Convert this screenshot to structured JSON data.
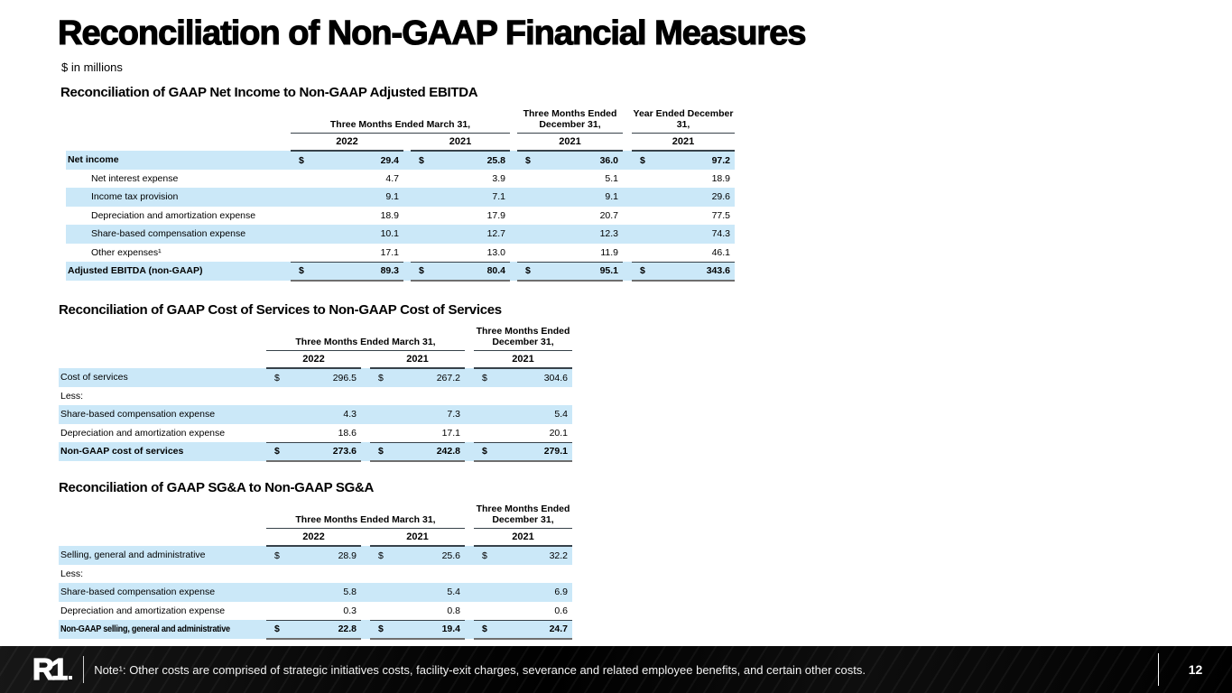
{
  "page": {
    "title": "Reconciliation of Non-GAAP Financial Measures",
    "subtitle": "$ in millions",
    "logo_text": "R1",
    "footer_note": "Note¹: Other costs are comprised of strategic initiatives costs, facility-exit charges, severance and related employee benefits, and certain other costs.",
    "page_number": "12"
  },
  "colors": {
    "row_highlight": "#cbe8f8",
    "rule_dark": "#37424a",
    "rule_total_bottom": "#6e6e6e",
    "footer_bg": "#0b0b0b"
  },
  "tables": [
    {
      "section_title": "Reconciliation of GAAP Net Income to Non-GAAP Adjusted EBITDA",
      "column_groups": [
        {
          "label": "Three Months Ended March 31,",
          "span": 2
        },
        {
          "label": "Three Months Ended December 31,",
          "span": 1
        },
        {
          "label": "Year Ended December 31,",
          "span": 1
        }
      ],
      "year_headers": [
        "2022",
        "2021",
        "2021",
        "2021"
      ],
      "rows": [
        {
          "label": "Net income",
          "bold": true,
          "highlight": true,
          "dollar": true,
          "values": [
            "29.4",
            "25.8",
            "36.0",
            "97.2"
          ]
        },
        {
          "label": "Net interest expense",
          "indent": true,
          "values": [
            "4.7",
            "3.9",
            "5.1",
            "18.9"
          ]
        },
        {
          "label": "Income tax provision",
          "indent": true,
          "highlight": true,
          "values": [
            "9.1",
            "7.1",
            "9.1",
            "29.6"
          ]
        },
        {
          "label": "Depreciation and amortization expense",
          "indent": true,
          "values": [
            "18.9",
            "17.9",
            "20.7",
            "77.5"
          ]
        },
        {
          "label": "Share-based compensation expense",
          "indent": true,
          "highlight": true,
          "values": [
            "10.1",
            "12.7",
            "12.3",
            "74.3"
          ]
        },
        {
          "label": "Other expenses¹",
          "indent": true,
          "underline": true,
          "values": [
            "17.1",
            "13.0",
            "11.9",
            "46.1"
          ]
        },
        {
          "label": "Adjusted EBITDA (non-GAAP)",
          "bold": true,
          "highlight": true,
          "dollar": true,
          "total": true,
          "values": [
            "89.3",
            "80.4",
            "95.1",
            "343.6"
          ]
        }
      ]
    },
    {
      "section_title": "Reconciliation of GAAP Cost of Services to Non-GAAP Cost of Services",
      "column_groups": [
        {
          "label": "Three Months Ended March 31,",
          "span": 2
        },
        {
          "label": "Three Months Ended December 31,",
          "span": 1
        }
      ],
      "year_headers": [
        "2022",
        "2021",
        "2021"
      ],
      "rows": [
        {
          "label": "Cost of services",
          "highlight": true,
          "dollar": true,
          "values": [
            "296.5",
            "267.2",
            "304.6"
          ]
        },
        {
          "label": "Less:",
          "values": [
            "",
            "",
            ""
          ]
        },
        {
          "label": "Share-based compensation expense",
          "highlight": true,
          "values": [
            "4.3",
            "7.3",
            "5.4"
          ]
        },
        {
          "label": "Depreciation and amortization expense",
          "underline": true,
          "values": [
            "18.6",
            "17.1",
            "20.1"
          ]
        },
        {
          "label": "Non-GAAP cost of services",
          "bold": true,
          "highlight": true,
          "dollar": true,
          "total": true,
          "values": [
            "273.6",
            "242.8",
            "279.1"
          ]
        }
      ]
    },
    {
      "section_title": "Reconciliation of GAAP SG&A to Non-GAAP SG&A",
      "column_groups": [
        {
          "label": "Three Months Ended March 31,",
          "span": 2
        },
        {
          "label": "Three Months Ended December 31,",
          "span": 1
        }
      ],
      "year_headers": [
        "2022",
        "2021",
        "2021"
      ],
      "rows": [
        {
          "label": "Selling, general and administrative",
          "highlight": true,
          "dollar": true,
          "values": [
            "28.9",
            "25.6",
            "32.2"
          ]
        },
        {
          "label": "Less:",
          "values": [
            "",
            "",
            ""
          ]
        },
        {
          "label": "Share-based compensation expense",
          "highlight": true,
          "values": [
            "5.8",
            "5.4",
            "6.9"
          ]
        },
        {
          "label": "Depreciation and amortization expense",
          "underline": true,
          "values": [
            "0.3",
            "0.8",
            "0.6"
          ]
        },
        {
          "label": "Non-GAAP selling, general and administrative",
          "bold": true,
          "highlight": true,
          "dollar": true,
          "total": true,
          "values": [
            "22.8",
            "19.4",
            "24.7"
          ]
        }
      ]
    }
  ]
}
